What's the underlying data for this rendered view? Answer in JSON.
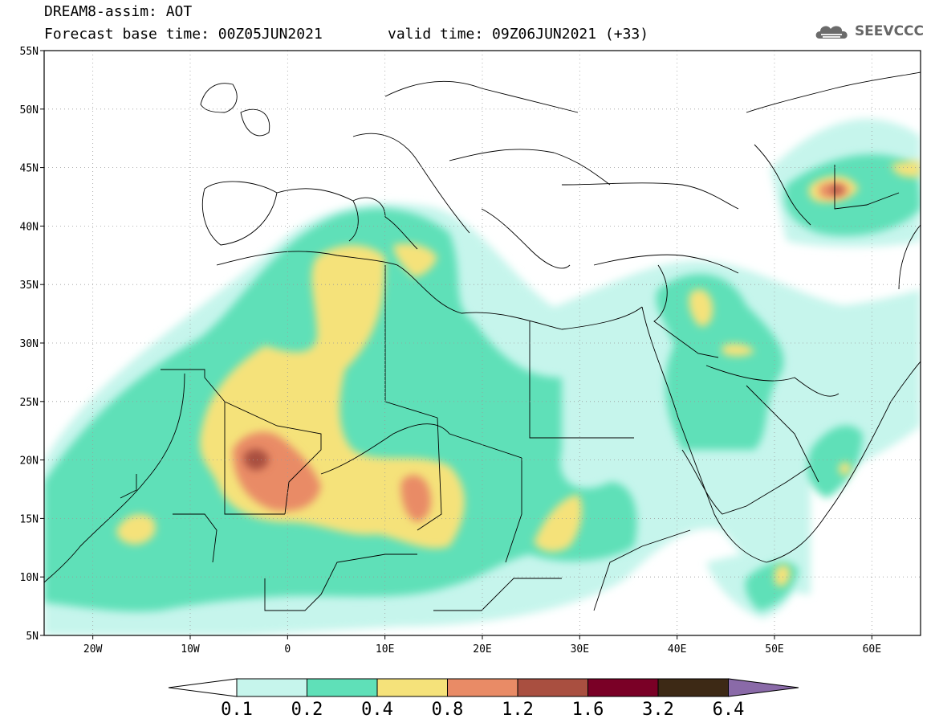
{
  "header": {
    "line1": "DREAM8-assim: AOT",
    "line2": "Forecast base time: 00Z05JUN2021",
    "valid": "valid time: 09Z06JUN2021 (+33)"
  },
  "logo": {
    "text": "SEEVCCC",
    "icon": "cloud-icon"
  },
  "map": {
    "lon_range": [
      -25,
      65
    ],
    "lat_range": [
      5,
      55
    ],
    "lat_ticks": [
      {
        "v": 55,
        "label": "55N"
      },
      {
        "v": 50,
        "label": "50N"
      },
      {
        "v": 45,
        "label": "45N"
      },
      {
        "v": 40,
        "label": "40N"
      },
      {
        "v": 35,
        "label": "35N"
      },
      {
        "v": 30,
        "label": "30N"
      },
      {
        "v": 25,
        "label": "25N"
      },
      {
        "v": 20,
        "label": "20N"
      },
      {
        "v": 15,
        "label": "15N"
      },
      {
        "v": 10,
        "label": "10N"
      },
      {
        "v": 5,
        "label": "5N"
      }
    ],
    "lon_ticks": [
      {
        "v": -20,
        "label": "20W"
      },
      {
        "v": -10,
        "label": "10W"
      },
      {
        "v": 0,
        "label": "0"
      },
      {
        "v": 10,
        "label": "10E"
      },
      {
        "v": 20,
        "label": "20E"
      },
      {
        "v": 30,
        "label": "30E"
      },
      {
        "v": 40,
        "label": "40E"
      },
      {
        "v": 50,
        "label": "50E"
      },
      {
        "v": 60,
        "label": "60E"
      }
    ],
    "levels": [
      {
        "name": "0.1-0.2",
        "color": "#c6f5ec"
      },
      {
        "name": "0.2-0.4",
        "color": "#5fe0b8"
      },
      {
        "name": "0.4-0.8",
        "color": "#f5e27a"
      },
      {
        "name": "0.8-1.2",
        "color": "#e98b66"
      },
      {
        "name": "1.2-1.6",
        "color": "#a94f40"
      },
      {
        "name": "1.6-3.2",
        "color": "#7a0026"
      },
      {
        "name": "3.2-6.4",
        "color": "#3d2915"
      },
      {
        "name": ">6.4",
        "color": "#8a6aa8"
      }
    ]
  },
  "colorbar": {
    "labels": [
      "0.1",
      "0.2",
      "0.4",
      "0.8",
      "1.2",
      "1.6",
      "3.2",
      "6.4"
    ]
  }
}
